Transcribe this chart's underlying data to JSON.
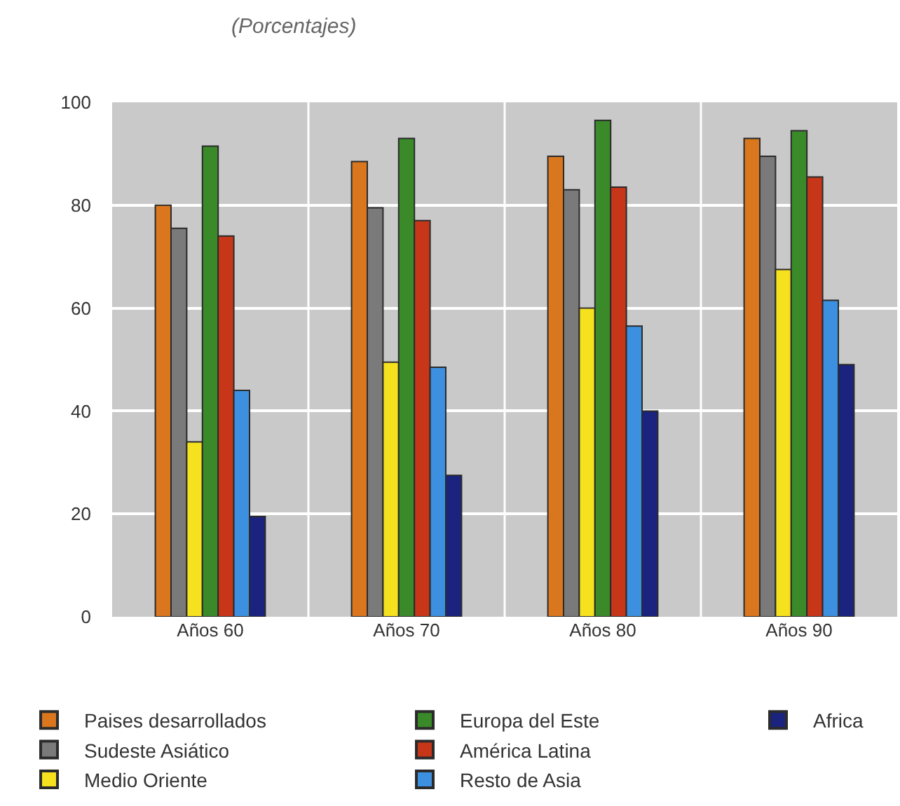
{
  "chart_data": {
    "type": "bar",
    "subtitle": "(Porcentajes)",
    "categories": [
      "Años 60",
      "Años 70",
      "Años 80",
      "Años 90"
    ],
    "series": [
      {
        "name": "Paises desarrollados",
        "color": "#d9761e",
        "values": [
          80,
          88.5,
          89.5,
          93
        ]
      },
      {
        "name": "Sudeste Asiático",
        "color": "#7a7a7a",
        "values": [
          75.5,
          79.5,
          83,
          89.5
        ]
      },
      {
        "name": "Medio Oriente",
        "color": "#f5e11e",
        "values": [
          34,
          49.5,
          60,
          67.5
        ]
      },
      {
        "name": "Europa del Este",
        "color": "#3a8a2a",
        "values": [
          91.5,
          93,
          96.5,
          94.5
        ]
      },
      {
        "name": "América Latina",
        "color": "#c8361a",
        "values": [
          74,
          77,
          83.5,
          85.5
        ]
      },
      {
        "name": "Resto de Asia",
        "color": "#3d8fdf",
        "values": [
          44,
          48.5,
          56.5,
          61.5
        ]
      },
      {
        "name": "Africa",
        "color": "#1a237e",
        "values": [
          19.5,
          27.5,
          40,
          49
        ]
      }
    ],
    "ylim": [
      0,
      100
    ],
    "yticks": [
      0,
      20,
      40,
      60,
      80,
      100
    ],
    "grid": true,
    "legend": "bottom"
  }
}
